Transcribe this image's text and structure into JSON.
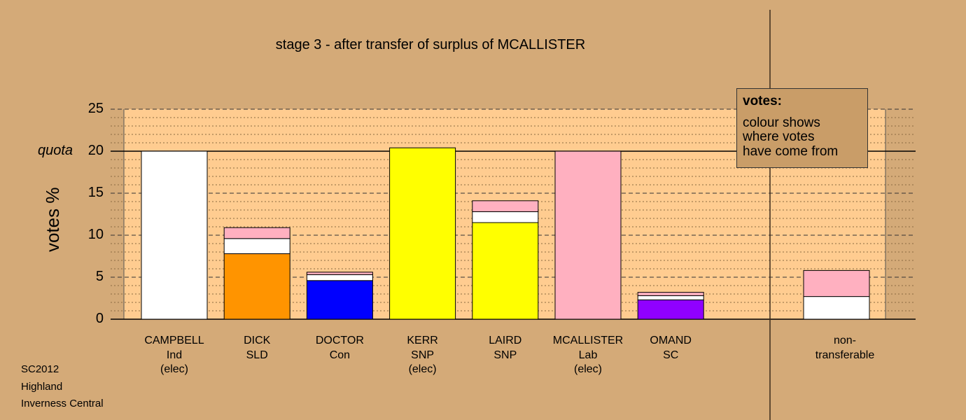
{
  "title": "stage 3 - after transfer of surplus of MCALLISTER",
  "ylabel": "votes %",
  "quota_label": "quota",
  "legend": {
    "title": "votes:",
    "lines": [
      "colour shows",
      "where votes",
      "have come from"
    ]
  },
  "footer": {
    "election": "SC2012",
    "council": "Highland",
    "ward": "Inverness Central"
  },
  "colors": {
    "background": "#d4aa78",
    "plot": "#ffcc90",
    "Ind": "#ffffff",
    "SLD": "#ff9400",
    "Con": "#0000ff",
    "SNP": "#ffff00",
    "Lab": "#ffb0c0",
    "SC": "#9000ff"
  },
  "chart_data": {
    "type": "bar",
    "stacked": true,
    "ylim": [
      0,
      25
    ],
    "yticks": [
      "0",
      "5",
      "10",
      "15",
      "20",
      "25"
    ],
    "quota": 20,
    "categories": [
      {
        "name": "CAMPBELL",
        "party": "Ind",
        "status": "(elec)",
        "segments": [
          {
            "from": "Ind",
            "value": 20.0
          }
        ]
      },
      {
        "name": "DICK",
        "party": "SLD",
        "status": "",
        "segments": [
          {
            "from": "SLD",
            "value": 7.8
          },
          {
            "from": "Ind",
            "value": 1.8
          },
          {
            "from": "Lab",
            "value": 1.3
          }
        ]
      },
      {
        "name": "DOCTOR",
        "party": "Con",
        "status": "",
        "segments": [
          {
            "from": "Con",
            "value": 4.6
          },
          {
            "from": "Ind",
            "value": 0.7
          },
          {
            "from": "Lab",
            "value": 0.3
          }
        ]
      },
      {
        "name": "KERR",
        "party": "SNP",
        "status": "(elec)",
        "segments": [
          {
            "from": "SNP",
            "value": 20.4
          }
        ]
      },
      {
        "name": "LAIRD",
        "party": "SNP",
        "status": "",
        "segments": [
          {
            "from": "SNP",
            "value": 11.5
          },
          {
            "from": "Ind",
            "value": 1.3
          },
          {
            "from": "Lab",
            "value": 1.3
          }
        ]
      },
      {
        "name": "MCALLISTER",
        "party": "Lab",
        "status": "(elec)",
        "segments": [
          {
            "from": "Lab",
            "value": 20.0
          }
        ]
      },
      {
        "name": "OMAND",
        "party": "SC",
        "status": "",
        "segments": [
          {
            "from": "SC",
            "value": 2.3
          },
          {
            "from": "Ind",
            "value": 0.5
          },
          {
            "from": "Lab",
            "value": 0.4
          }
        ]
      }
    ],
    "nontransferable": {
      "label_lines": [
        "non-",
        "transferable"
      ],
      "segments": [
        {
          "from": "Ind",
          "value": 2.7
        },
        {
          "from": "Lab",
          "value": 3.1
        }
      ]
    }
  }
}
